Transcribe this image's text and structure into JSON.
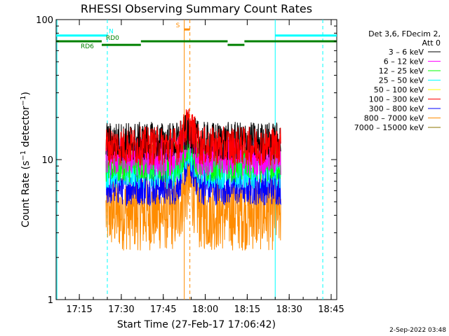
{
  "chart_data": {
    "type": "line",
    "title": "RHESSI Observing Summary Count Rates",
    "xlabel": "Start Time (27-Feb-17 17:06:42)",
    "ylabel": "Count Rate (s⁻¹ detector⁻¹)",
    "ylabel_main": "Count Rate (s",
    "ylabel_sup1": "−1",
    "ylabel_mid": " detector",
    "ylabel_sup2": "−1",
    "ylabel_end": ")",
    "y_scale": "log",
    "ylim": [
      1,
      100
    ],
    "xlim": [
      "17:06:42",
      "18:47:00"
    ],
    "x_ticks": [
      "17:15",
      "17:30",
      "17:45",
      "18:00",
      "18:15",
      "18:30",
      "18:45"
    ],
    "y_ticks": [
      "1",
      "10",
      "100"
    ],
    "legend": {
      "placement": "right",
      "header": [
        "Det 3,6, FDecim 2,",
        "Att 0"
      ],
      "entries": [
        {
          "label": "3 – 6 keV",
          "color": "#000000"
        },
        {
          "label": "6 – 12 keV",
          "color": "#ff00ff"
        },
        {
          "label": "12 – 25 keV",
          "color": "#00ff00"
        },
        {
          "label": "25 – 50 keV",
          "color": "#00ffff"
        },
        {
          "label": "50 – 100 keV",
          "color": "#ffff00"
        },
        {
          "label": "100 – 300 keV",
          "color": "#ff0000"
        },
        {
          "label": "300 – 800 keV",
          "color": "#0000ff"
        },
        {
          "label": "800 – 7000 keV",
          "color": "#ff8c00"
        },
        {
          "label": "7000 – 15000 keV",
          "color": "#8b7500"
        }
      ]
    },
    "series": [
      {
        "name": "3 – 6 keV",
        "color": "#000000",
        "t_start": "17:24:30",
        "t_end": "18:27:00",
        "base": 13.5,
        "peak": {
          "t": "17:54:00",
          "value": 16
        }
      },
      {
        "name": "6 – 12 keV",
        "color": "#ff00ff",
        "t_start": "17:24:30",
        "t_end": "18:27:00",
        "base": 10.5,
        "peak": {
          "t": "17:54:00",
          "value": 14
        }
      },
      {
        "name": "12 – 25 keV",
        "color": "#00ff00",
        "t_start": "17:24:30",
        "t_end": "18:27:00",
        "base": 9.5,
        "peak": {
          "t": "17:54:00",
          "value": 13
        }
      },
      {
        "name": "25 – 50 keV",
        "color": "#00ffff",
        "t_start": "17:24:30",
        "t_end": "18:27:00",
        "base": 8.5,
        "peak": {
          "t": "17:54:00",
          "value": 12
        }
      },
      {
        "name": "100 – 300 keV",
        "color": "#ff0000",
        "t_start": "17:24:30",
        "t_end": "18:27:00",
        "base": 12.5,
        "peak": {
          "t": "17:54:00",
          "value": 18
        }
      },
      {
        "name": "300 – 800 keV",
        "color": "#0000ff",
        "t_start": "17:24:30",
        "t_end": "18:27:00",
        "base": 6.5,
        "peak": {
          "t": "17:54:00",
          "value": 10
        }
      },
      {
        "name": "800 – 7000 keV",
        "color": "#ff8c00",
        "t_start": "17:24:30",
        "t_end": "18:27:00",
        "base": 4.2,
        "peak": {
          "t": "17:54:00",
          "value": 7
        }
      }
    ],
    "state_bars": [
      {
        "label": "N",
        "color": "#00ffff",
        "level": 77,
        "segments": [
          [
            "17:06:42",
            "17:25:00"
          ],
          [
            "18:25:00",
            "18:47:00"
          ]
        ]
      },
      {
        "label": "RD0",
        "color": "#008000",
        "level": 70,
        "segments": [
          [
            "17:06:42",
            "17:23:00"
          ],
          [
            "17:37:00",
            "18:08:00"
          ],
          [
            "18:14:00",
            "18:47:00"
          ]
        ]
      },
      {
        "label": "RD6",
        "color": "#008000",
        "level": 66,
        "segments": [
          [
            "17:23:00",
            "17:37:00"
          ],
          [
            "18:08:00",
            "18:14:00"
          ]
        ]
      },
      {
        "label": "S",
        "color": "#ff8c00",
        "level": 85,
        "segments": [
          [
            "17:52:30",
            "17:54:30"
          ]
        ]
      }
    ],
    "vlines": [
      {
        "t": "17:07:00",
        "color": "#00ffff",
        "style": "solid"
      },
      {
        "t": "17:25:00",
        "color": "#00ffff",
        "style": "dashed"
      },
      {
        "t": "17:52:30",
        "color": "#ff8c00",
        "style": "solid"
      },
      {
        "t": "17:54:30",
        "color": "#ff8c00",
        "style": "dashed"
      },
      {
        "t": "18:25:00",
        "color": "#00ffff",
        "style": "solid"
      },
      {
        "t": "18:42:00",
        "color": "#00ffff",
        "style": "dashed"
      }
    ],
    "footer_date": "2-Sep-2022 03:48"
  }
}
